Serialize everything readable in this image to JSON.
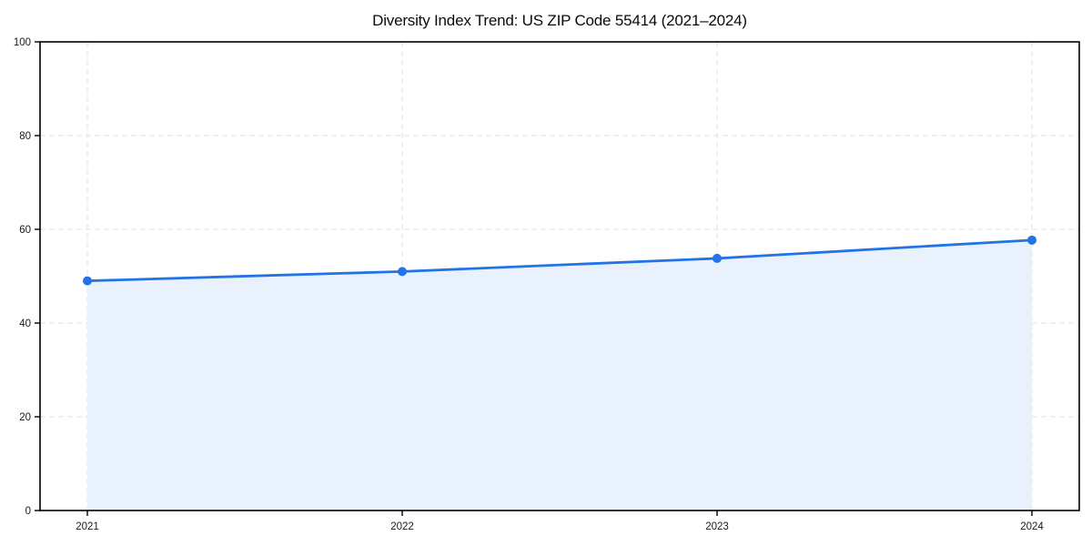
{
  "chart_data": {
    "type": "area",
    "title": "Diversity Index Trend: US ZIP Code 55414 (2021–2024)",
    "categories": [
      "2021",
      "2022",
      "2023",
      "2024"
    ],
    "series": [
      {
        "name": "Diversity Index",
        "values": [
          49.0,
          51.0,
          53.8,
          57.7
        ]
      }
    ],
    "xlabel": "",
    "ylabel": "",
    "ylim": [
      0,
      100
    ],
    "yticks": [
      0,
      20,
      40,
      60,
      80,
      100
    ],
    "grid": "dashed-both",
    "legend_position": "none",
    "line_color": "#2273e6",
    "marker_color": "#2273e6",
    "fill_color": "#e9f1fc",
    "grid_color": "#e2e2e2",
    "spine_color": "#000000",
    "tick_label_color": "#1a1a1a",
    "background_color": "#ffffff"
  }
}
